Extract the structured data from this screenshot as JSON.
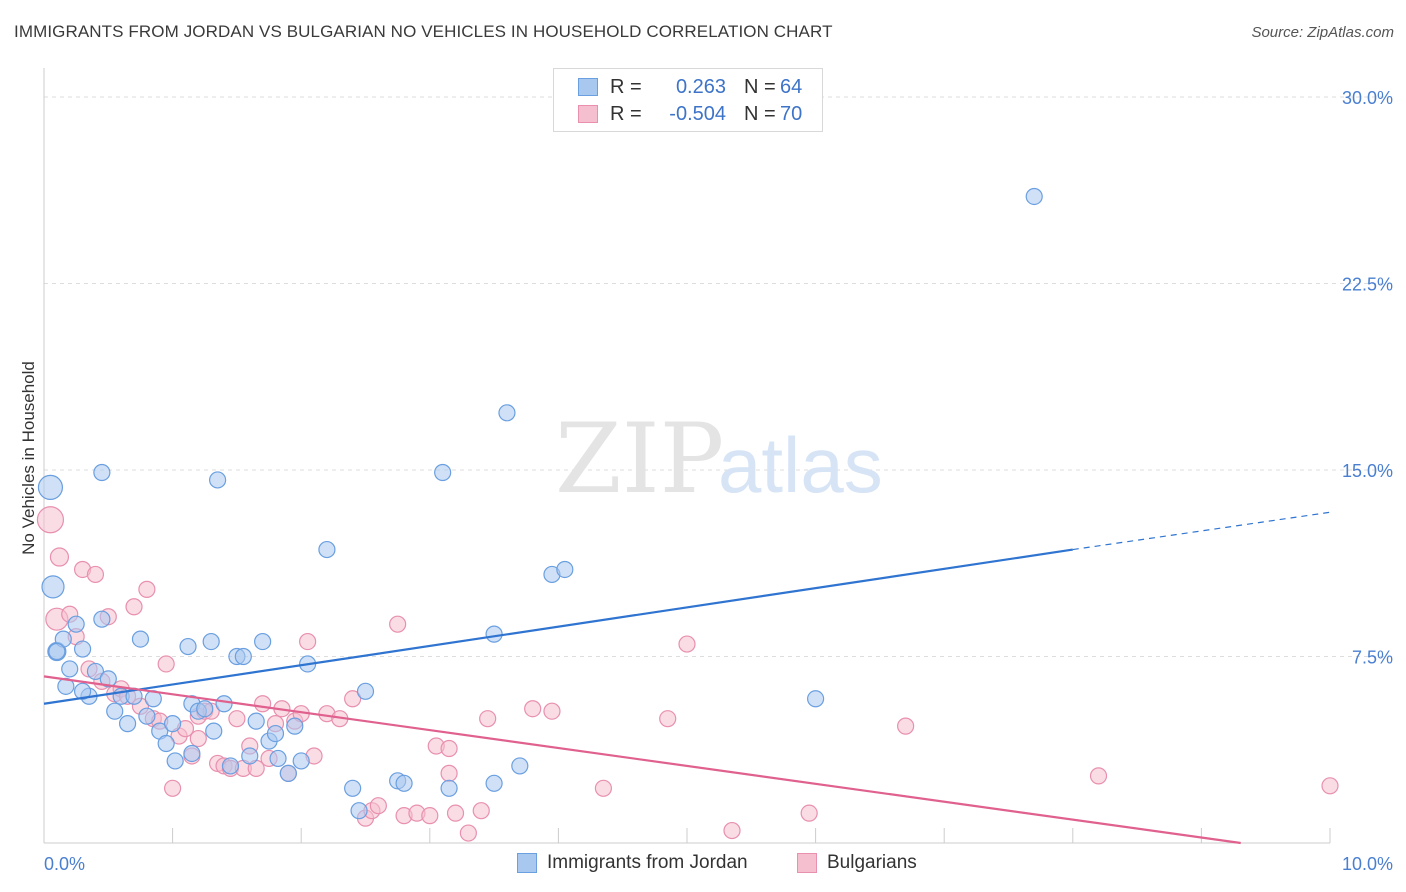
{
  "header": {
    "title": "IMMIGRANTS FROM JORDAN VS BULGARIAN NO VEHICLES IN HOUSEHOLD CORRELATION CHART",
    "source": "Source: ZipAtlas.com"
  },
  "watermark": {
    "zip": "ZIP",
    "atlas": "atlas"
  },
  "legend": {
    "rows": [
      {
        "r_label": "R =",
        "r_value": "0.263",
        "n_label": "N =",
        "n_value": "64"
      },
      {
        "r_label": "R =",
        "r_value": "-0.504",
        "n_label": "N =",
        "n_value": "70"
      }
    ]
  },
  "bottom_legend": {
    "items": [
      {
        "label": "Immigrants from Jordan"
      },
      {
        "label": "Bulgarians"
      }
    ]
  },
  "colors": {
    "blue_fill": "#a9c8f0",
    "blue_stroke": "#6a9fe0",
    "blue_line": "#2f74d0",
    "pink_fill": "#f6bfd0",
    "pink_stroke": "#e890ae",
    "pink_line": "#e0608e",
    "grid": "#dddddd",
    "tick": "#4a7fd0"
  },
  "chart_data": {
    "type": "scatter",
    "title": "IMMIGRANTS FROM JORDAN VS BULGARIAN NO VEHICLES IN HOUSEHOLD CORRELATION CHART",
    "xlabel": "",
    "ylabel": "No Vehicles in Household",
    "xlim": [
      0,
      10
    ],
    "ylim": [
      0,
      30
    ],
    "x_tick_labels": [
      "0.0%",
      "10.0%"
    ],
    "y_ticks": [
      7.5,
      15.0,
      22.5,
      30.0
    ],
    "y_tick_labels": [
      "7.5%",
      "15.0%",
      "22.5%",
      "30.0%"
    ],
    "series": [
      {
        "name": "Immigrants from Jordan",
        "color": "blue",
        "trend": {
          "x0": 0.0,
          "y0": 5.6,
          "x1": 8.0,
          "y1": 11.8,
          "dash_to_x": 10.0,
          "dash_to_y": 13.3
        },
        "points": [
          [
            0.05,
            14.3,
            12
          ],
          [
            0.07,
            10.3,
            11
          ],
          [
            0.1,
            7.7,
            9
          ],
          [
            0.15,
            8.2,
            8
          ],
          [
            0.17,
            6.3,
            8
          ],
          [
            0.2,
            7.0,
            8
          ],
          [
            0.25,
            8.8,
            8
          ],
          [
            0.3,
            7.8,
            8
          ],
          [
            0.35,
            5.9,
            8
          ],
          [
            0.4,
            6.9,
            8
          ],
          [
            0.45,
            9.0,
            8
          ],
          [
            0.5,
            6.6,
            8
          ],
          [
            0.55,
            5.3,
            8
          ],
          [
            0.6,
            5.9,
            8
          ],
          [
            0.65,
            4.8,
            8
          ],
          [
            0.7,
            5.9,
            8
          ],
          [
            0.75,
            8.2,
            8
          ],
          [
            0.8,
            5.1,
            8
          ],
          [
            0.85,
            5.8,
            8
          ],
          [
            0.9,
            4.5,
            8
          ],
          [
            0.95,
            4.0,
            8
          ],
          [
            1.0,
            4.8,
            8
          ],
          [
            1.02,
            3.3,
            8
          ],
          [
            1.12,
            7.9,
            8
          ],
          [
            1.15,
            5.6,
            8
          ],
          [
            1.2,
            5.3,
            8
          ],
          [
            1.25,
            5.4,
            8
          ],
          [
            1.3,
            8.1,
            8
          ],
          [
            1.32,
            4.5,
            8
          ],
          [
            1.35,
            14.6,
            8
          ],
          [
            1.4,
            5.6,
            8
          ],
          [
            1.45,
            3.1,
            8
          ],
          [
            1.5,
            7.5,
            8
          ],
          [
            1.55,
            7.5,
            8
          ],
          [
            1.6,
            3.5,
            8
          ],
          [
            1.65,
            4.9,
            8
          ],
          [
            1.7,
            8.1,
            8
          ],
          [
            1.75,
            4.1,
            8
          ],
          [
            1.8,
            4.4,
            8
          ],
          [
            1.82,
            3.4,
            8
          ],
          [
            1.9,
            2.8,
            8
          ],
          [
            1.95,
            4.7,
            8
          ],
          [
            2.0,
            3.3,
            8
          ],
          [
            2.05,
            7.2,
            8
          ],
          [
            2.2,
            11.8,
            8
          ],
          [
            2.4,
            2.2,
            8
          ],
          [
            2.45,
            1.3,
            8
          ],
          [
            2.5,
            6.1,
            8
          ],
          [
            2.75,
            2.5,
            8
          ],
          [
            2.8,
            2.4,
            8
          ],
          [
            3.1,
            14.9,
            8
          ],
          [
            3.15,
            2.2,
            8
          ],
          [
            3.5,
            8.4,
            8
          ],
          [
            3.5,
            2.4,
            8
          ],
          [
            3.6,
            17.3,
            8
          ],
          [
            3.7,
            3.1,
            8
          ],
          [
            3.95,
            10.8,
            8
          ],
          [
            4.05,
            11.0,
            8
          ],
          [
            6.0,
            5.8,
            8
          ],
          [
            7.7,
            26.0,
            8
          ],
          [
            0.45,
            14.9,
            8
          ],
          [
            1.15,
            3.6,
            8
          ],
          [
            0.3,
            6.1,
            8
          ],
          [
            0.1,
            7.7,
            8
          ]
        ]
      },
      {
        "name": "Bulgarians",
        "color": "pink",
        "trend": {
          "x0": 0.0,
          "y0": 6.7,
          "x1": 10.0,
          "y1": -0.5
        },
        "points": [
          [
            0.05,
            13.0,
            13
          ],
          [
            0.1,
            9.0,
            11
          ],
          [
            0.12,
            11.5,
            9
          ],
          [
            0.2,
            9.2,
            8
          ],
          [
            0.25,
            8.3,
            8
          ],
          [
            0.3,
            11.0,
            8
          ],
          [
            0.35,
            7.0,
            8
          ],
          [
            0.4,
            10.8,
            8
          ],
          [
            0.45,
            6.5,
            8
          ],
          [
            0.5,
            9.1,
            8
          ],
          [
            0.55,
            6.0,
            8
          ],
          [
            0.6,
            6.2,
            8
          ],
          [
            0.65,
            5.9,
            8
          ],
          [
            0.7,
            9.5,
            8
          ],
          [
            0.75,
            5.5,
            8
          ],
          [
            0.8,
            10.2,
            8
          ],
          [
            0.85,
            5.0,
            8
          ],
          [
            0.9,
            4.9,
            8
          ],
          [
            0.95,
            7.2,
            8
          ],
          [
            1.0,
            2.2,
            8
          ],
          [
            1.05,
            4.3,
            8
          ],
          [
            1.1,
            4.6,
            8
          ],
          [
            1.15,
            3.5,
            8
          ],
          [
            1.2,
            5.1,
            8
          ],
          [
            1.25,
            5.3,
            8
          ],
          [
            1.3,
            5.3,
            8
          ],
          [
            1.35,
            3.2,
            8
          ],
          [
            1.4,
            3.1,
            8
          ],
          [
            1.45,
            3.0,
            8
          ],
          [
            1.5,
            5.0,
            8
          ],
          [
            1.55,
            3.0,
            8
          ],
          [
            1.6,
            3.9,
            8
          ],
          [
            1.65,
            3.0,
            8
          ],
          [
            1.7,
            5.6,
            8
          ],
          [
            1.75,
            3.4,
            8
          ],
          [
            1.8,
            4.8,
            8
          ],
          [
            1.85,
            5.4,
            8
          ],
          [
            1.9,
            2.8,
            8
          ],
          [
            1.95,
            4.9,
            8
          ],
          [
            2.0,
            5.2,
            8
          ],
          [
            2.05,
            8.1,
            8
          ],
          [
            2.1,
            3.5,
            8
          ],
          [
            2.2,
            5.2,
            8
          ],
          [
            2.3,
            5.0,
            8
          ],
          [
            2.4,
            5.8,
            8
          ],
          [
            2.5,
            1.0,
            8
          ],
          [
            2.55,
            1.3,
            8
          ],
          [
            2.6,
            1.5,
            8
          ],
          [
            2.75,
            8.8,
            8
          ],
          [
            2.8,
            1.1,
            8
          ],
          [
            2.9,
            1.2,
            8
          ],
          [
            3.0,
            1.1,
            8
          ],
          [
            3.05,
            3.9,
            8
          ],
          [
            3.15,
            3.8,
            8
          ],
          [
            3.15,
            2.8,
            8
          ],
          [
            3.2,
            1.2,
            8
          ],
          [
            3.3,
            0.4,
            8
          ],
          [
            3.4,
            1.3,
            8
          ],
          [
            3.45,
            5.0,
            8
          ],
          [
            3.8,
            5.4,
            8
          ],
          [
            3.95,
            5.3,
            8
          ],
          [
            4.35,
            2.2,
            8
          ],
          [
            4.85,
            5.0,
            8
          ],
          [
            5.0,
            8.0,
            8
          ],
          [
            5.35,
            0.5,
            8
          ],
          [
            5.95,
            1.2,
            8
          ],
          [
            6.7,
            4.7,
            8
          ],
          [
            8.2,
            2.7,
            8
          ],
          [
            10.0,
            2.3,
            8
          ],
          [
            1.2,
            4.2,
            8
          ]
        ]
      }
    ]
  }
}
